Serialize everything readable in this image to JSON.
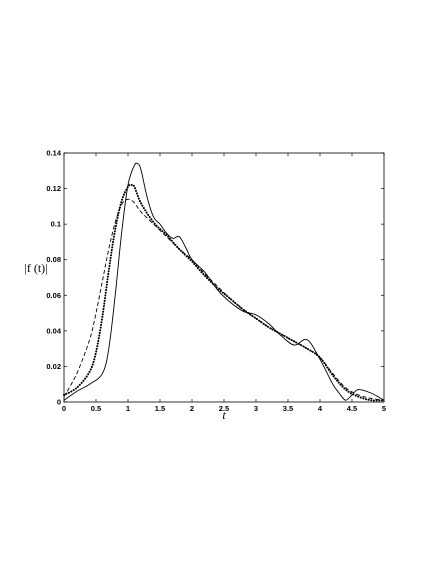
{
  "chart_data": {
    "type": "line",
    "title": "",
    "xlabel": "t",
    "ylabel": "|f (t)|",
    "xlim": [
      0,
      5
    ],
    "ylim": [
      0,
      0.14
    ],
    "grid": false,
    "legend": "none",
    "x_ticks": [
      "0",
      "0.5",
      "1",
      "1.5",
      "2",
      "2.5",
      "3",
      "3.5",
      "4",
      "4.5",
      "5"
    ],
    "y_ticks": [
      "0",
      "0.02",
      "0.04",
      "0.06",
      "0.08",
      "0.1",
      "0.12",
      "0.14"
    ],
    "series": [
      {
        "style": "solid",
        "x": [
          0,
          0.2,
          0.4,
          0.6,
          0.7,
          0.8,
          0.9,
          1.0,
          1.1,
          1.15,
          1.2,
          1.3,
          1.4,
          1.5,
          1.6,
          1.7,
          1.8,
          1.9,
          2.0,
          2.2,
          2.4,
          2.6,
          2.8,
          3.0,
          3.2,
          3.4,
          3.6,
          3.8,
          4.0,
          4.2,
          4.3,
          4.4,
          4.5,
          4.6,
          4.8,
          5.0
        ],
        "y": [
          0.001,
          0.006,
          0.01,
          0.016,
          0.03,
          0.06,
          0.095,
          0.122,
          0.133,
          0.134,
          0.131,
          0.115,
          0.104,
          0.1,
          0.095,
          0.092,
          0.093,
          0.087,
          0.08,
          0.073,
          0.063,
          0.056,
          0.051,
          0.049,
          0.044,
          0.037,
          0.032,
          0.035,
          0.024,
          0.01,
          0.005,
          0.001,
          0.004,
          0.007,
          0.005,
          0.001
        ]
      },
      {
        "style": "dashed",
        "x": [
          0,
          0.2,
          0.4,
          0.5,
          0.6,
          0.7,
          0.8,
          0.9,
          1.0,
          1.1,
          1.2,
          1.4,
          1.6,
          1.8,
          2.0,
          2.2,
          2.4,
          2.6,
          2.8,
          3.0,
          3.2,
          3.4,
          3.6,
          3.8,
          4.0,
          4.2,
          4.4,
          4.6,
          4.8,
          5.0
        ],
        "y": [
          0.003,
          0.016,
          0.035,
          0.05,
          0.068,
          0.086,
          0.101,
          0.111,
          0.114,
          0.112,
          0.107,
          0.1,
          0.093,
          0.086,
          0.08,
          0.072,
          0.065,
          0.058,
          0.052,
          0.047,
          0.042,
          0.038,
          0.034,
          0.03,
          0.025,
          0.016,
          0.008,
          0.004,
          0.002,
          0.001
        ]
      },
      {
        "style": "dotted",
        "x": [
          0,
          0.2,
          0.4,
          0.5,
          0.6,
          0.7,
          0.8,
          0.9,
          1.0,
          1.05,
          1.1,
          1.2,
          1.4,
          1.6,
          1.8,
          2.0,
          2.2,
          2.4,
          2.6,
          2.8,
          3.0,
          3.2,
          3.4,
          3.6,
          3.8,
          4.0,
          4.2,
          4.4,
          4.6,
          4.8,
          5.0
        ],
        "y": [
          0.004,
          0.008,
          0.017,
          0.028,
          0.048,
          0.074,
          0.097,
          0.113,
          0.121,
          0.122,
          0.121,
          0.112,
          0.101,
          0.094,
          0.086,
          0.079,
          0.071,
          0.064,
          0.058,
          0.052,
          0.047,
          0.042,
          0.038,
          0.034,
          0.03,
          0.025,
          0.015,
          0.007,
          0.003,
          0.001,
          0.001
        ]
      }
    ]
  }
}
